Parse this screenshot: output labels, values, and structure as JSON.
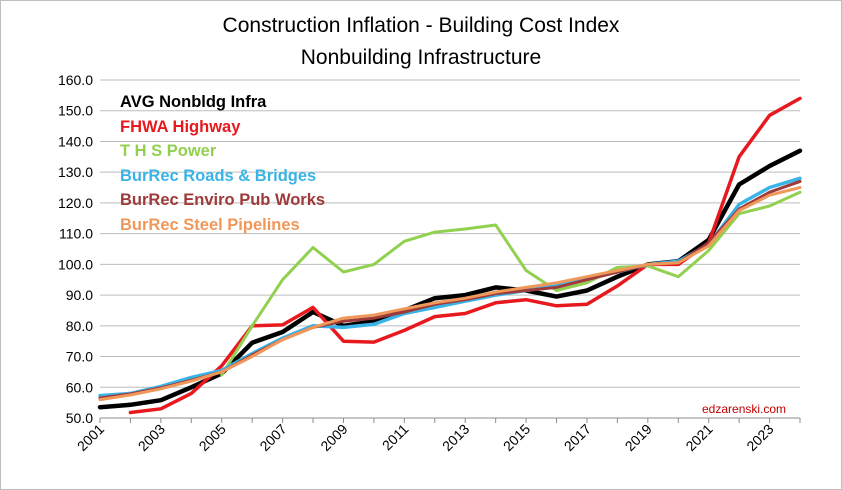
{
  "chart_data": {
    "type": "line",
    "title": "Construction Inflation - Building Cost Index",
    "subtitle": "Nonbuilding Infrastructure",
    "xlabel": "",
    "ylabel": "",
    "xlim": [
      2001,
      2024
    ],
    "ylim": [
      50,
      160
    ],
    "yticks": [
      50,
      60,
      70,
      80,
      90,
      100,
      110,
      120,
      130,
      140,
      150,
      160
    ],
    "xticks": [
      2001,
      2003,
      2005,
      2007,
      2009,
      2011,
      2013,
      2015,
      2017,
      2019,
      2021,
      2023
    ],
    "grid": "horizontal",
    "legend_position": "top-left",
    "annotation": "edzarenski.com",
    "series": [
      {
        "name": "AVG Nonbldg Infra",
        "color": "#000000",
        "width": 4.5,
        "x": [
          2001,
          2002,
          2003,
          2004,
          2005,
          2006,
          2007,
          2008,
          2009,
          2010,
          2011,
          2012,
          2013,
          2014,
          2015,
          2016,
          2017,
          2018,
          2019,
          2020,
          2021,
          2022,
          2023,
          2024
        ],
        "values": [
          53.5,
          54.3,
          55.8,
          60.0,
          64.5,
          74.5,
          78.0,
          84.5,
          80.0,
          81.5,
          85.0,
          89.0,
          90.0,
          92.5,
          91.5,
          89.5,
          91.5,
          96.0,
          100.0,
          101.0,
          108.0,
          126.0,
          132.0,
          137.0
        ]
      },
      {
        "name": "FHWA Highway",
        "color": "#e8191e",
        "width": 3.5,
        "x": [
          2002,
          2003,
          2004,
          2005,
          2006,
          2007,
          2008,
          2009,
          2010,
          2011,
          2012,
          2013,
          2014,
          2015,
          2016,
          2017,
          2018,
          2019,
          2020,
          2021,
          2022,
          2023,
          2024
        ],
        "values": [
          51.8,
          53.0,
          58.0,
          67.0,
          80.0,
          80.3,
          86.0,
          75.0,
          74.7,
          78.5,
          83.0,
          84.0,
          87.5,
          88.5,
          86.5,
          87.0,
          93.0,
          100.0,
          100.0,
          107.0,
          135.0,
          148.5,
          154.0
        ]
      },
      {
        "name": "T H S Power",
        "color": "#92d050",
        "width": 3,
        "x": [
          2005,
          2006,
          2007,
          2008,
          2009,
          2010,
          2011,
          2012,
          2013,
          2014,
          2015,
          2016,
          2017,
          2018,
          2019,
          2020,
          2021,
          2022,
          2023,
          2024
        ],
        "values": [
          64.0,
          80.0,
          95.0,
          105.5,
          97.5,
          100.0,
          107.5,
          110.5,
          111.5,
          112.8,
          98.0,
          91.5,
          94.0,
          99.0,
          99.5,
          96.0,
          104.5,
          116.5,
          119.0,
          123.5
        ]
      },
      {
        "name": "BurRec Roads & Bridges",
        "color": "#3ab4e6",
        "width": 3.5,
        "x": [
          2001,
          2002,
          2003,
          2004,
          2005,
          2006,
          2007,
          2008,
          2009,
          2010,
          2011,
          2012,
          2013,
          2014,
          2015,
          2016,
          2017,
          2018,
          2019,
          2020,
          2021,
          2022,
          2023,
          2024
        ],
        "values": [
          57.3,
          58.0,
          60.3,
          63.2,
          65.5,
          71.0,
          76.0,
          80.0,
          79.5,
          80.5,
          84.0,
          86.0,
          88.0,
          90.0,
          91.5,
          93.0,
          95.5,
          97.5,
          100.0,
          101.0,
          106.5,
          119.5,
          125.0,
          128.0
        ]
      },
      {
        "name": "BurRec Enviro Pub Works",
        "color": "#9e3a3a",
        "width": 3,
        "x": [
          2001,
          2002,
          2003,
          2004,
          2005,
          2006,
          2007,
          2008,
          2009,
          2010,
          2011,
          2012,
          2013,
          2014,
          2015,
          2016,
          2017,
          2018,
          2019,
          2020,
          2021,
          2022,
          2023,
          2024
        ],
        "values": [
          56.5,
          57.8,
          59.8,
          62.3,
          65.0,
          70.5,
          75.5,
          79.5,
          81.5,
          82.5,
          84.5,
          87.0,
          88.5,
          90.5,
          91.5,
          92.5,
          95.0,
          97.5,
          100.0,
          100.5,
          107.0,
          118.0,
          123.5,
          127.0
        ]
      },
      {
        "name": "BurRec Steel Pipelines",
        "color": "#f0975a",
        "width": 3,
        "x": [
          2001,
          2002,
          2003,
          2004,
          2005,
          2006,
          2007,
          2008,
          2009,
          2010,
          2011,
          2012,
          2013,
          2014,
          2015,
          2016,
          2017,
          2018,
          2019,
          2020,
          2021,
          2022,
          2023,
          2024
        ],
        "values": [
          56.0,
          57.5,
          59.5,
          62.0,
          65.0,
          70.0,
          75.5,
          79.5,
          82.5,
          83.5,
          85.5,
          87.5,
          89.0,
          91.0,
          92.5,
          94.0,
          96.0,
          98.0,
          100.0,
          100.5,
          106.0,
          117.5,
          122.5,
          125.0
        ]
      }
    ]
  }
}
